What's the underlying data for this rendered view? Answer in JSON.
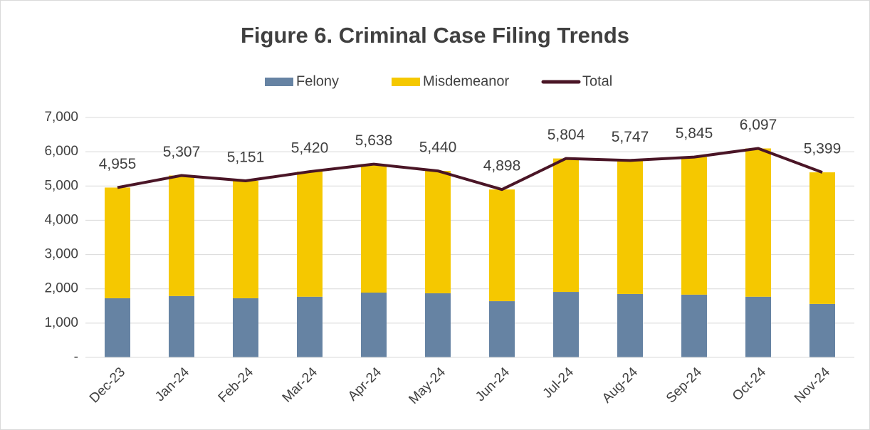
{
  "chart_data": {
    "type": "bar",
    "stacked": true,
    "title": "Figure 6. Criminal Case Filing Trends",
    "categories": [
      "Dec-23",
      "Jan-24",
      "Feb-24",
      "Mar-24",
      "Apr-24",
      "May-24",
      "Jun-24",
      "Jul-24",
      "Aug-24",
      "Sep-24",
      "Oct-24",
      "Nov-24"
    ],
    "series": [
      {
        "name": "Felony",
        "color": "#6683a3",
        "values": [
          1725,
          1790,
          1725,
          1770,
          1890,
          1870,
          1640,
          1910,
          1850,
          1830,
          1770,
          1560
        ]
      },
      {
        "name": "Misdemeanor",
        "color": "#f5c800",
        "values": [
          3230,
          3517,
          3426,
          3650,
          3748,
          3570,
          3258,
          3894,
          3897,
          4015,
          4327,
          3839
        ]
      },
      {
        "name": "Total",
        "type": "line",
        "color": "#4a1526",
        "values": [
          4955,
          5307,
          5151,
          5420,
          5638,
          5440,
          4898,
          5804,
          5747,
          5845,
          6097,
          5399
        ],
        "value_labels": [
          "4,955",
          "5,307",
          "5,151",
          "5,420",
          "5,638",
          "5,440",
          "4,898",
          "5,804",
          "5,747",
          "5,845",
          "6,097",
          "5,399"
        ]
      }
    ],
    "ylim": [
      0,
      7000
    ],
    "yticks": [
      {
        "value": 0,
        "label": "-"
      },
      {
        "value": 1000,
        "label": "1,000"
      },
      {
        "value": 2000,
        "label": "2,000"
      },
      {
        "value": 3000,
        "label": "3,000"
      },
      {
        "value": 4000,
        "label": "4,000"
      },
      {
        "value": 5000,
        "label": "5,000"
      },
      {
        "value": 6000,
        "label": "6,000"
      },
      {
        "value": 7000,
        "label": "7,000"
      }
    ],
    "grid": true,
    "legend": "top"
  }
}
